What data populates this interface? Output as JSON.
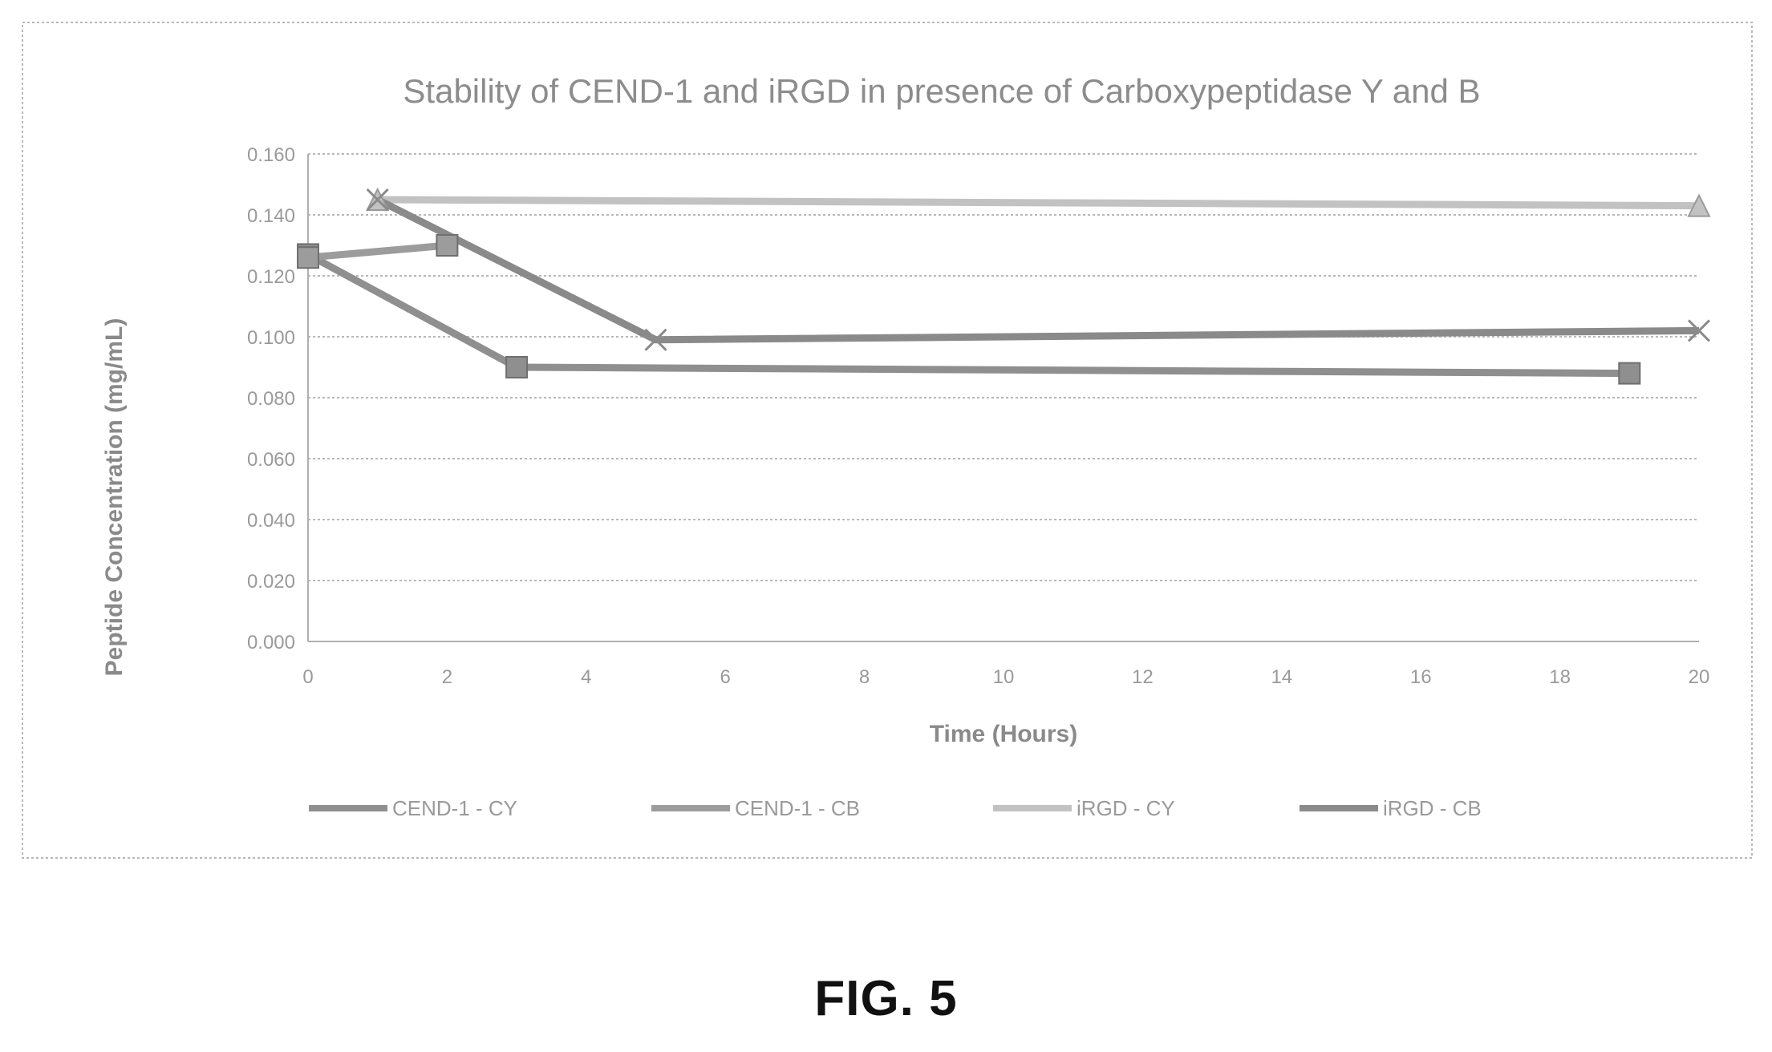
{
  "figure_label": "FIG. 5",
  "chart_data": {
    "type": "line",
    "title": "Stability of CEND-1 and iRGD in presence of Carboxypeptidase Y and B",
    "xlabel": "Time (Hours)",
    "ylabel": "Peptide Concentration (mg/mL)",
    "xlim": [
      0,
      20
    ],
    "ylim": [
      0,
      0.16
    ],
    "x_ticks": [
      "0",
      "2",
      "4",
      "6",
      "8",
      "10",
      "12",
      "14",
      "16",
      "18",
      "20"
    ],
    "y_ticks": [
      "0.000",
      "0.020",
      "0.040",
      "0.060",
      "0.080",
      "0.100",
      "0.120",
      "0.140",
      "0.160"
    ],
    "grid": true,
    "legend_position": "bottom",
    "series": [
      {
        "name": "CEND-1 - CY",
        "marker": "square",
        "color": "#8f8f8f",
        "x": [
          0,
          3,
          19
        ],
        "y": [
          0.127,
          0.09,
          0.088
        ]
      },
      {
        "name": "CEND-1 - CB",
        "marker": "square",
        "color": "#9c9c9c",
        "x": [
          0,
          2
        ],
        "y": [
          0.126,
          0.13
        ]
      },
      {
        "name": "iRGD - CY",
        "marker": "triangle",
        "color": "#c2c2c2",
        "x": [
          1,
          20
        ],
        "y": [
          0.145,
          0.143
        ]
      },
      {
        "name": "iRGD - CB",
        "marker": "x",
        "color": "#8a8a8a",
        "x": [
          1,
          5,
          20
        ],
        "y": [
          0.145,
          0.099,
          0.102
        ]
      }
    ]
  }
}
